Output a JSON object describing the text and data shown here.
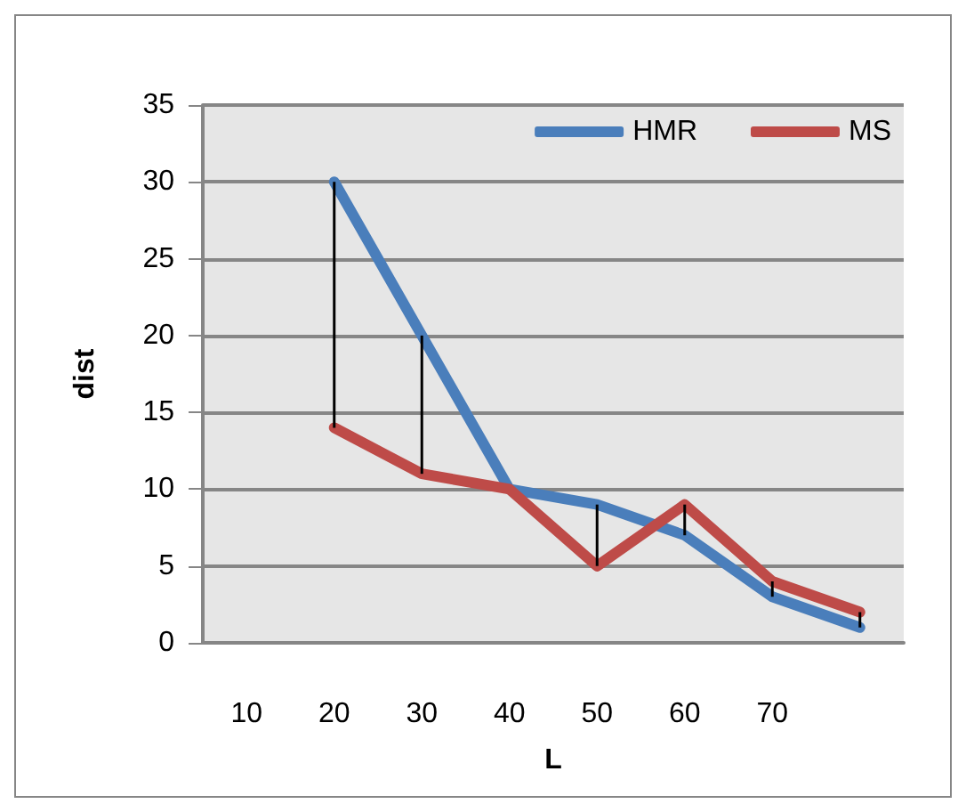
{
  "chart_data": {
    "type": "line",
    "xlabel": "L",
    "ylabel": "dist",
    "categories": [
      "10",
      "20",
      "30",
      "40",
      "50",
      "60",
      "70",
      null
    ],
    "series": [
      {
        "name": "HMR",
        "color": "#4a7ebb",
        "values": [
          null,
          30,
          20,
          10,
          9,
          7,
          3,
          1
        ]
      },
      {
        "name": "MS",
        "color": "#be4b48",
        "values": [
          null,
          14,
          11,
          10,
          5,
          9,
          4,
          2
        ],
        "errors": [
          null,
          [
            14,
            30
          ],
          [
            11,
            20
          ],
          null,
          [
            5,
            9
          ],
          [
            7,
            9
          ],
          [
            3,
            4
          ],
          [
            1,
            2
          ]
        ]
      }
    ],
    "ylim": [
      0,
      35
    ],
    "yticks": [
      0,
      5,
      10,
      15,
      20,
      25,
      30,
      35
    ],
    "grid": "y",
    "legend": "top right",
    "marker": "none",
    "line_style": "solid"
  }
}
